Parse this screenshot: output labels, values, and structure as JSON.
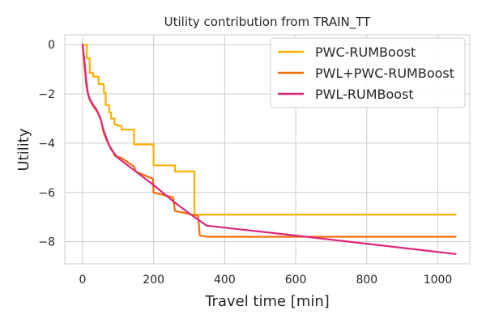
{
  "chart_data": {
    "type": "line",
    "title": "Utility contribution from TRAIN_TT",
    "xlabel": "Travel time [min]",
    "ylabel": "Utility",
    "xlim": [
      -50,
      1090
    ],
    "ylim": [
      -8.9,
      0.4
    ],
    "grid": true,
    "legend_position": "top-right",
    "x_ticks": [
      0,
      200,
      400,
      600,
      800,
      1000
    ],
    "y_ticks": [
      0,
      -2,
      -4,
      -6,
      -8
    ],
    "x_tick_labels": [
      "0",
      "200",
      "400",
      "600",
      "800",
      "1000"
    ],
    "y_tick_labels": [
      "0",
      "−2",
      "−4",
      "−6",
      "−8"
    ],
    "series": [
      {
        "name": "PWC-RUMBoost",
        "color": "#ffb000",
        "step": true,
        "x": [
          0,
          12,
          20,
          30,
          45,
          60,
          65,
          75,
          80,
          90,
          100,
          110,
          145,
          200,
          260,
          315,
          1050
        ],
        "y": [
          0,
          -0.55,
          -1.15,
          -1.3,
          -1.6,
          -1.95,
          -2.45,
          -2.75,
          -3.0,
          -3.25,
          -3.3,
          -3.45,
          -4.05,
          -4.9,
          -5.15,
          -6.9,
          -6.9
        ]
      },
      {
        "name": "PWL+PWC-RUMBoost",
        "color": "#f26d0c",
        "step": false,
        "x": [
          0,
          5,
          10,
          15,
          20,
          30,
          40,
          50,
          55,
          60,
          70,
          75,
          80,
          85,
          90,
          95,
          110,
          145,
          150,
          198,
          200,
          255,
          260,
          325,
          330,
          350,
          1050
        ],
        "y": [
          0,
          -0.8,
          -1.6,
          -2.0,
          -2.25,
          -2.5,
          -2.7,
          -2.95,
          -3.3,
          -3.6,
          -3.95,
          -4.1,
          -4.2,
          -4.3,
          -4.5,
          -4.55,
          -4.6,
          -4.95,
          -5.15,
          -5.45,
          -6.0,
          -6.2,
          -6.75,
          -6.95,
          -7.75,
          -7.8,
          -7.8
        ]
      },
      {
        "name": "PWL-RUMBoost",
        "color": "#dc267f",
        "step": false,
        "x": [
          0,
          5,
          10,
          15,
          20,
          30,
          40,
          50,
          60,
          70,
          80,
          100,
          150,
          200,
          250,
          300,
          350,
          600,
          1050
        ],
        "y": [
          0,
          -0.6,
          -1.4,
          -1.95,
          -2.2,
          -2.45,
          -2.65,
          -3.0,
          -3.5,
          -3.9,
          -4.25,
          -4.6,
          -5.15,
          -5.7,
          -6.3,
          -6.85,
          -7.35,
          -7.75,
          -8.5
        ]
      }
    ]
  }
}
